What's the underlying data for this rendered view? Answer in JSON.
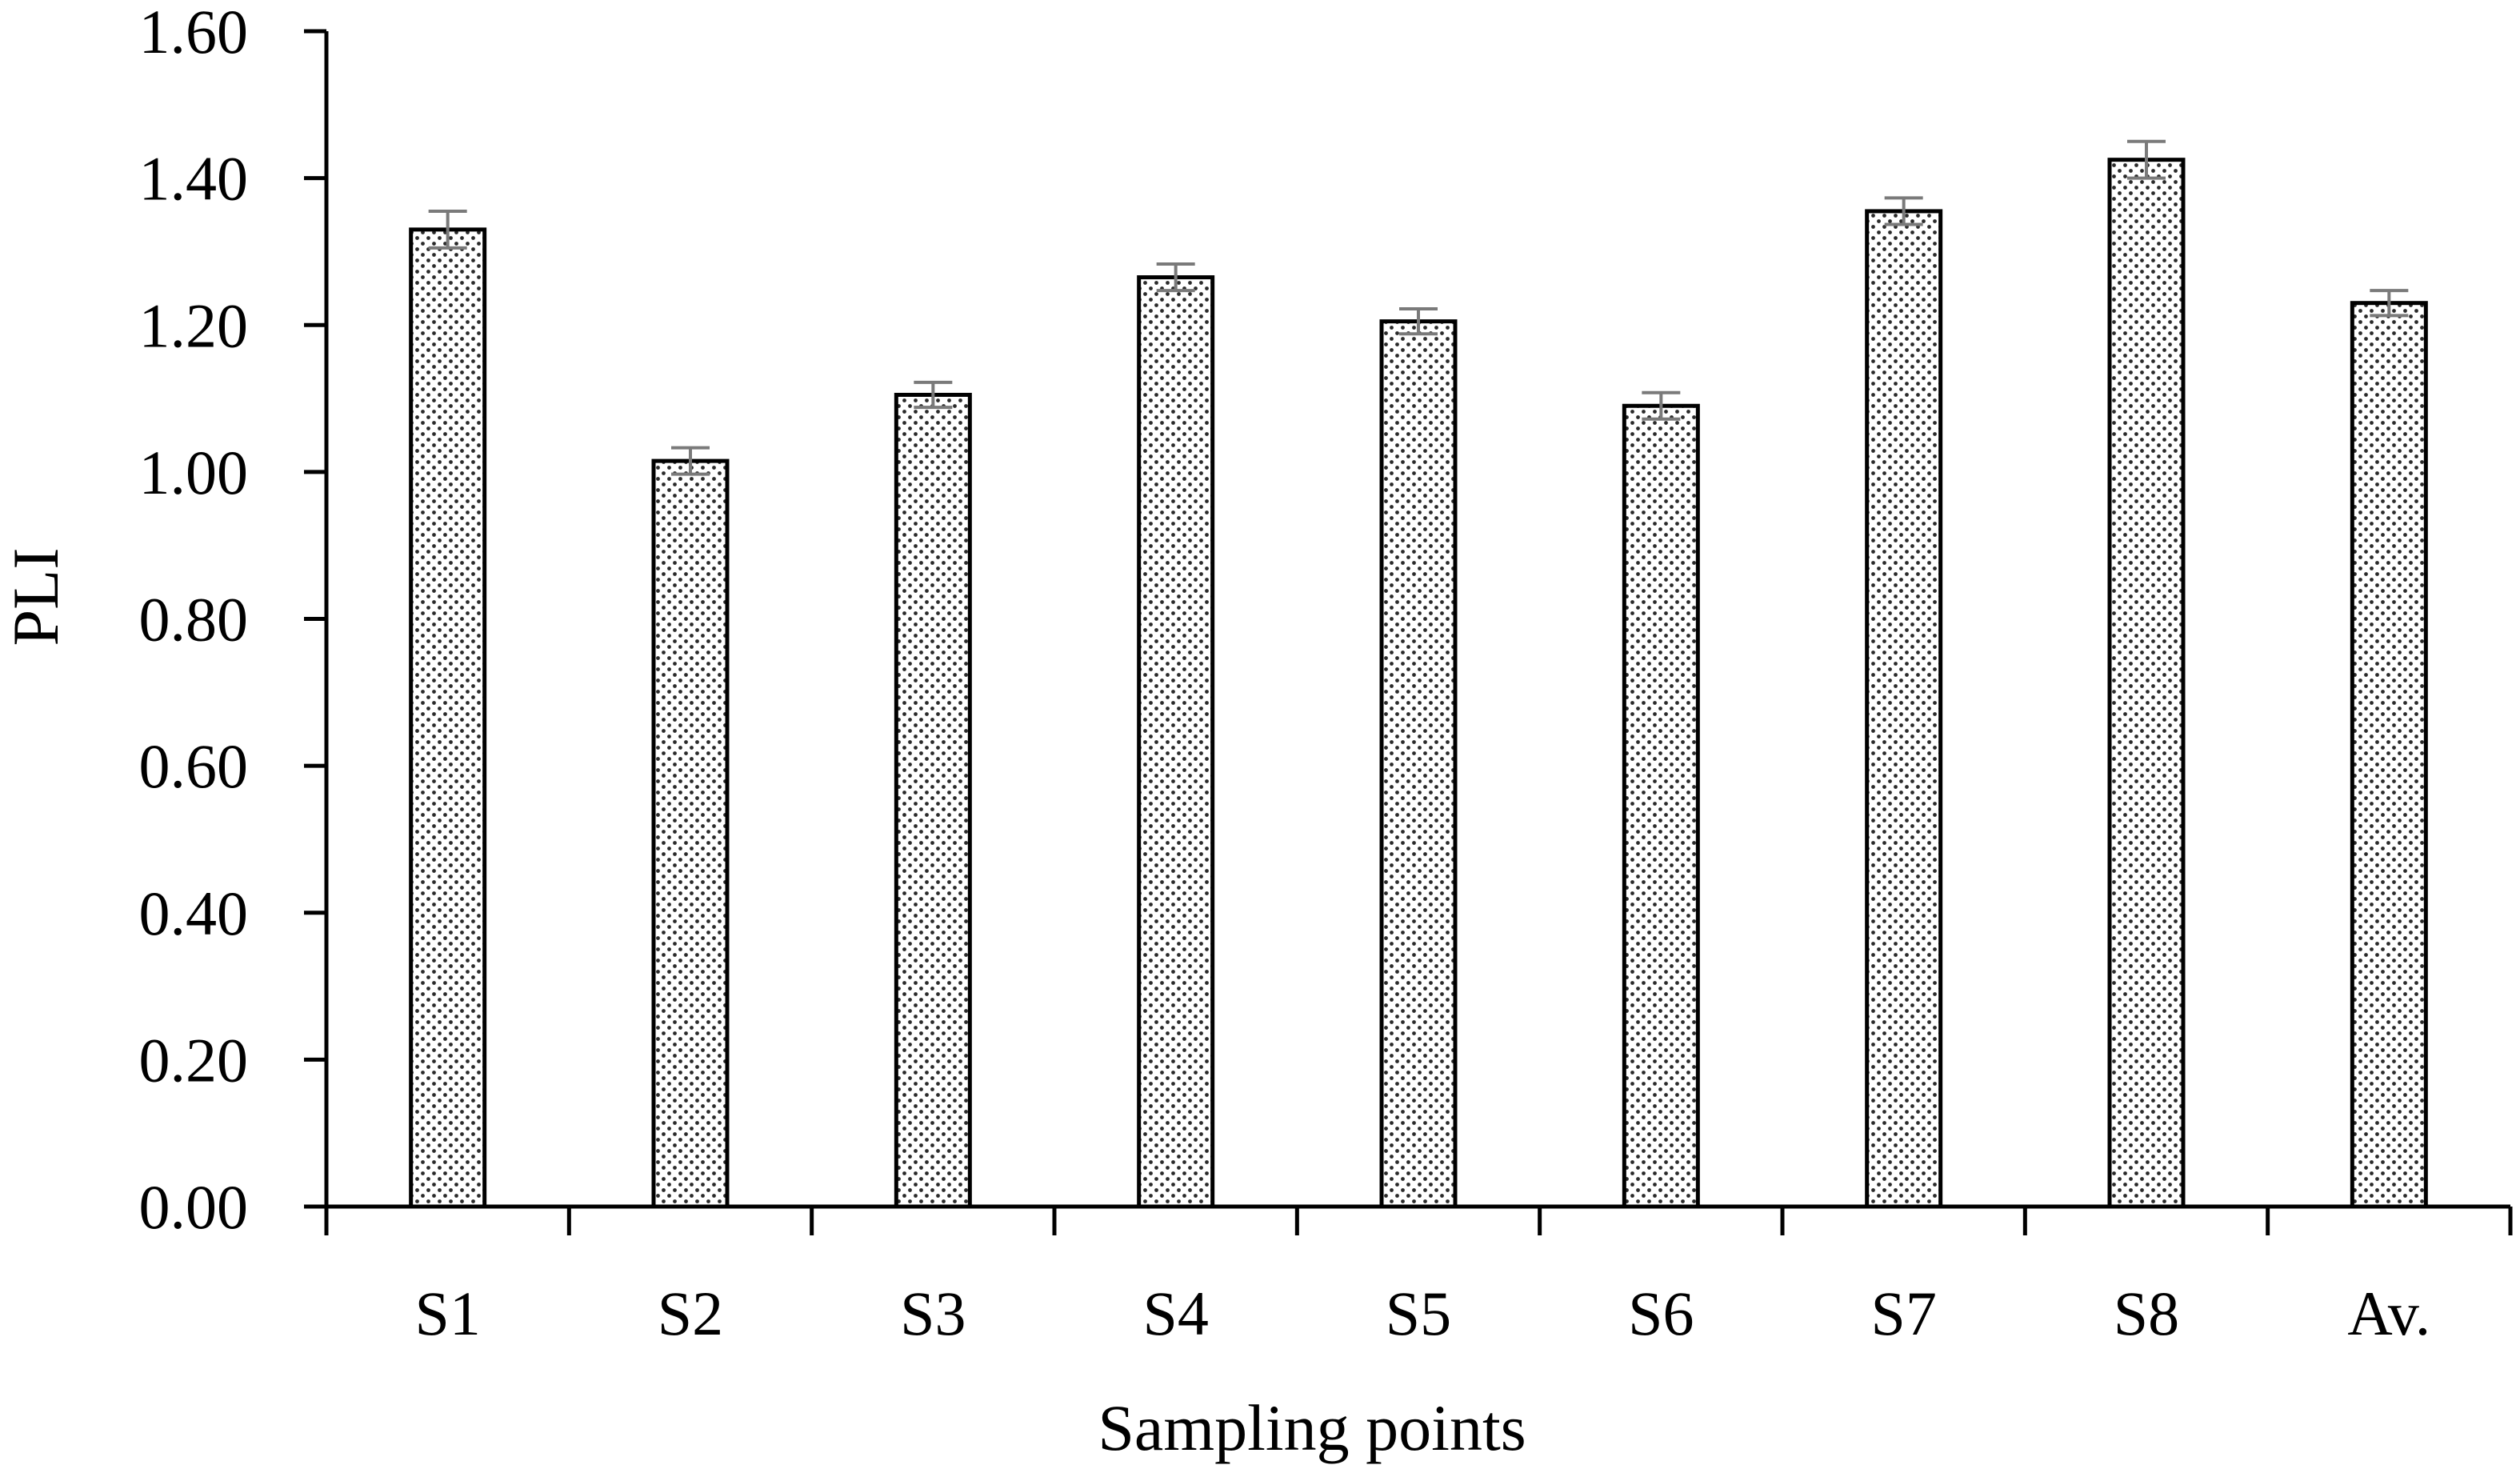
{
  "chart_data": {
    "type": "bar",
    "categories": [
      "S1",
      "S2",
      "S3",
      "S4",
      "S5",
      "S6",
      "S7",
      "S8",
      "Av."
    ],
    "values": [
      1.33,
      1.015,
      1.105,
      1.265,
      1.205,
      1.09,
      1.355,
      1.425,
      1.23
    ],
    "errors": [
      0.025,
      0.018,
      0.017,
      0.018,
      0.017,
      0.018,
      0.018,
      0.025,
      0.017
    ],
    "xlabel": "Sampling points",
    "ylabel": "PLI",
    "ylim": [
      0,
      1.6
    ],
    "yticks": [
      "0.00",
      "0.20",
      "0.40",
      "0.60",
      "0.80",
      "1.00",
      "1.20",
      "1.40",
      "1.60"
    ],
    "grid": false,
    "bar_fill": "dotted pattern",
    "colors": {
      "bar_edge": "#000000",
      "dots": "#2a2a2a",
      "error_bar": "#7a7a7a",
      "axis": "#000000"
    }
  }
}
